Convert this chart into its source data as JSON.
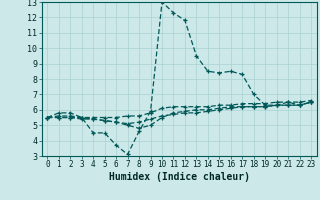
{
  "xlabel": "Humidex (Indice chaleur)",
  "background_color": "#cce8e8",
  "grid_color": "#aad0d0",
  "line_color": "#005858",
  "xlim": [
    -0.5,
    23.5
  ],
  "ylim": [
    3,
    13
  ],
  "xticks": [
    0,
    1,
    2,
    3,
    4,
    5,
    6,
    7,
    8,
    9,
    10,
    11,
    12,
    13,
    14,
    15,
    16,
    17,
    18,
    19,
    20,
    21,
    22,
    23
  ],
  "yticks": [
    3,
    4,
    5,
    6,
    7,
    8,
    9,
    10,
    11,
    12,
    13
  ],
  "series": [
    [
      5.5,
      5.8,
      5.8,
      5.5,
      4.5,
      4.5,
      3.7,
      3.1,
      4.6,
      5.9,
      13.0,
      12.3,
      11.8,
      9.5,
      8.5,
      8.4,
      8.5,
      8.3,
      7.0,
      6.3,
      6.3,
      6.5,
      6.3,
      6.5
    ],
    [
      5.5,
      5.5,
      5.5,
      5.5,
      5.5,
      5.5,
      5.5,
      5.6,
      5.6,
      5.8,
      6.1,
      6.2,
      6.2,
      6.2,
      6.2,
      6.3,
      6.3,
      6.4,
      6.4,
      6.4,
      6.5,
      6.5,
      6.5,
      6.6
    ],
    [
      5.5,
      5.5,
      5.5,
      5.4,
      5.4,
      5.3,
      5.2,
      5.1,
      5.2,
      5.4,
      5.6,
      5.7,
      5.8,
      5.8,
      5.9,
      6.0,
      6.1,
      6.2,
      6.2,
      6.2,
      6.3,
      6.3,
      6.3,
      6.5
    ],
    [
      5.5,
      5.6,
      5.6,
      5.5,
      5.4,
      5.3,
      5.2,
      5.0,
      4.8,
      5.0,
      5.5,
      5.8,
      5.9,
      6.0,
      6.0,
      6.1,
      6.2,
      6.2,
      6.2,
      6.2,
      6.3,
      6.3,
      6.3,
      6.5
    ]
  ],
  "xlabel_fontsize": 7,
  "tick_fontsize": 5.5,
  "ytick_fontsize": 6
}
